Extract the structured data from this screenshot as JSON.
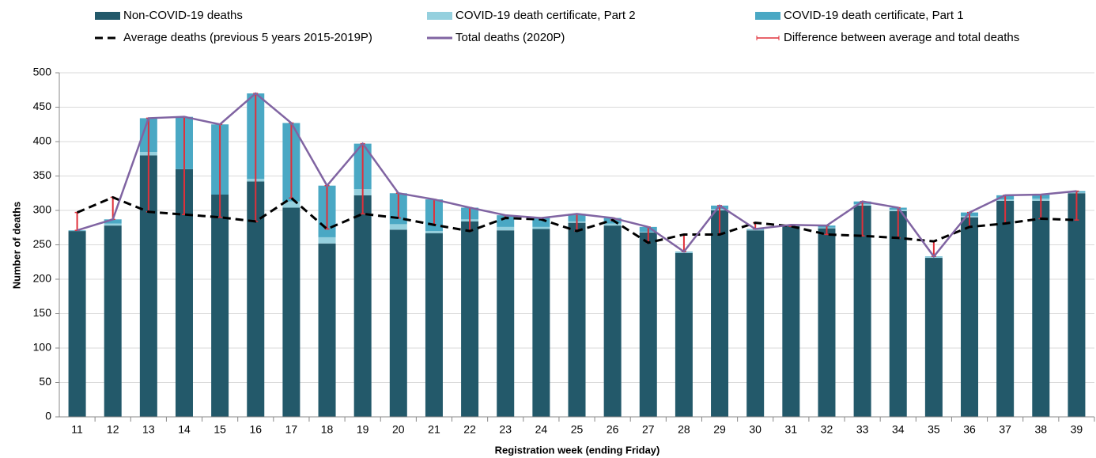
{
  "chart_data": {
    "type": "bar",
    "y_label": "Number of deaths",
    "x_label": "Registration week (ending Friday)",
    "categories": [
      "11",
      "12",
      "13",
      "14",
      "15",
      "16",
      "17",
      "18",
      "19",
      "20",
      "21",
      "22",
      "23",
      "24",
      "25",
      "26",
      "27",
      "28",
      "29",
      "30",
      "31",
      "32",
      "33",
      "34",
      "35",
      "36",
      "37",
      "38",
      "39"
    ],
    "series": [
      {
        "name": "Non-COVID-19 deaths",
        "color": "#23596a",
        "kind": "stack",
        "values": [
          270,
          278,
          380,
          360,
          323,
          342,
          304,
          252,
          322,
          272,
          267,
          284,
          271,
          273,
          282,
          278,
          268,
          238,
          300,
          271,
          277,
          274,
          307,
          299,
          231,
          290,
          314,
          314,
          325
        ]
      },
      {
        "name": "COVID-19 death certificate, Part 2",
        "color": "#95d0de",
        "kind": "stack",
        "values": [
          0,
          3,
          5,
          0,
          0,
          4,
          9,
          9,
          9,
          8,
          3,
          3,
          5,
          3,
          2,
          3,
          1,
          1,
          2,
          1,
          1,
          1,
          2,
          2,
          1,
          2,
          2,
          3,
          1
        ]
      },
      {
        "name": "COVID-19 death certificate, Part 1",
        "color": "#4aa8c4",
        "kind": "stack",
        "values": [
          1,
          6,
          49,
          76,
          102,
          124,
          114,
          75,
          66,
          45,
          46,
          17,
          17,
          13,
          11,
          8,
          7,
          1,
          5,
          1,
          1,
          3,
          4,
          3,
          1,
          5,
          6,
          6,
          2
        ]
      },
      {
        "name": "Average deaths (previous 5 years 2015-2019P)",
        "color": "#000000",
        "kind": "line",
        "dashed": true,
        "values": [
          297,
          319,
          298,
          294,
          290,
          284,
          318,
          273,
          295,
          289,
          279,
          270,
          289,
          287,
          270,
          286,
          253,
          265,
          265,
          282,
          277,
          265,
          263,
          260,
          255,
          276,
          281,
          288,
          286
        ]
      },
      {
        "name": "Total deaths (2020P)",
        "color": "#8064a2",
        "kind": "line",
        "dashed": false,
        "values": [
          271,
          287,
          434,
          436,
          425,
          470,
          427,
          336,
          397,
          325,
          316,
          304,
          293,
          289,
          295,
          289,
          276,
          240,
          307,
          273,
          279,
          278,
          313,
          304,
          233,
          297,
          322,
          323,
          328
        ]
      }
    ],
    "difference": {
      "name": "Difference between average and total deaths",
      "color": "#e0303a"
    },
    "ylim": [
      0,
      500
    ],
    "yticks": [
      0,
      50,
      100,
      150,
      200,
      250,
      300,
      350,
      400,
      450,
      500
    ],
    "grid": true
  }
}
